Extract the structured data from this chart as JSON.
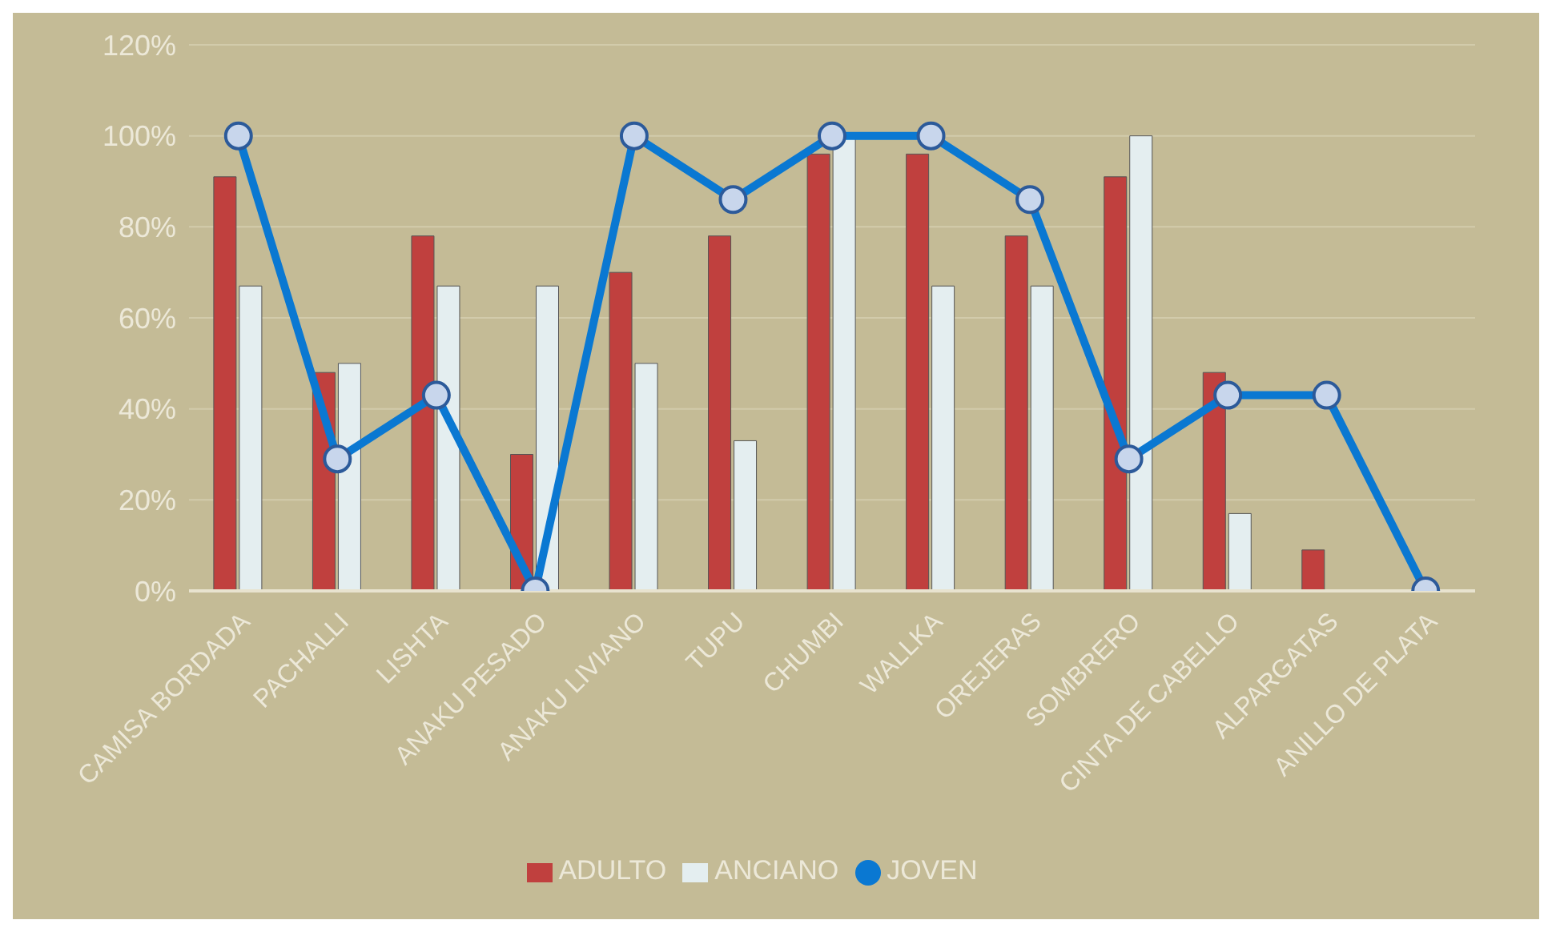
{
  "chart_data": {
    "type": "bar",
    "categories": [
      "CAMISA BORDADA",
      "PACHALLI",
      "LISHTA",
      "ANAKU PESADO",
      "ANAKU LIVIANO",
      "TUPU",
      "CHUMBI",
      "WALLKA",
      "OREJERAS",
      "SOMBRERO",
      "CINTA DE CABELLO",
      "ALPARGATAS",
      "ANILLO DE PLATA"
    ],
    "series": [
      {
        "name": "ADULTO",
        "color": "#c0403e",
        "values": [
          91,
          48,
          78,
          30,
          70,
          78,
          96,
          96,
          78,
          91,
          48,
          9,
          0
        ]
      },
      {
        "name": "ANCIANO",
        "color": "#e4eef0",
        "values": [
          67,
          50,
          67,
          67,
          50,
          33,
          100,
          67,
          67,
          100,
          17,
          0,
          0
        ]
      },
      {
        "name": "JOVEN",
        "type": "line",
        "color": "#0a78d2",
        "values": [
          100,
          29,
          43,
          0,
          100,
          86,
          100,
          100,
          86,
          29,
          43,
          43,
          0
        ]
      }
    ],
    "ylim": [
      0,
      120
    ],
    "yticks": [
      {
        "value": 0,
        "label": "0%"
      },
      {
        "value": 20,
        "label": "20%"
      },
      {
        "value": 40,
        "label": "40%"
      },
      {
        "value": 60,
        "label": "60%"
      },
      {
        "value": 80,
        "label": "80%"
      },
      {
        "value": 100,
        "label": "100%"
      },
      {
        "value": 120,
        "label": "120%"
      }
    ],
    "grid": "y",
    "legend": "bottom",
    "marker": "circle",
    "line_style": "solid"
  }
}
